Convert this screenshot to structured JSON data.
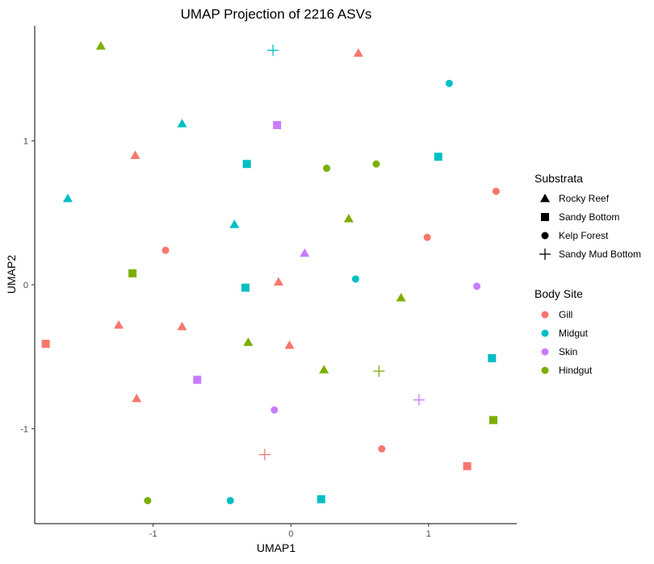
{
  "chart_data": {
    "type": "scatter",
    "title": "UMAP Projection of 2216 ASVs",
    "xlabel": "UMAP1",
    "ylabel": "UMAP2",
    "xlim": [
      -1.86,
      1.64
    ],
    "ylim": [
      -1.66,
      1.8
    ],
    "x_ticks": [
      -1,
      0,
      1
    ],
    "y_ticks": [
      -1,
      0,
      1
    ],
    "x_tick_labels": [
      "-1",
      "0",
      "1"
    ],
    "y_tick_labels": [
      "-1",
      "0",
      "1"
    ],
    "grid": false,
    "legend_placement": "right",
    "shape_legend": {
      "title": "Substrata",
      "entries": [
        {
          "label": "Rocky Reef",
          "shape": "triangle"
        },
        {
          "label": "Sandy Bottom",
          "shape": "square"
        },
        {
          "label": "Kelp Forest",
          "shape": "circle"
        },
        {
          "label": "Sandy Mud Bottom",
          "shape": "cross"
        }
      ]
    },
    "color_legend": {
      "title": "Body Site",
      "entries": [
        {
          "label": "Gill",
          "color": "#F8766D"
        },
        {
          "label": "Midgut",
          "color": "#00BFC4"
        },
        {
          "label": "Skin",
          "color": "#C77CFF"
        },
        {
          "label": "Hindgut",
          "color": "#7CAE00"
        }
      ]
    },
    "points": [
      {
        "x": -1.38,
        "y": 1.66,
        "substrata": "Rocky Reef",
        "body_site": "Hindgut"
      },
      {
        "x": -0.13,
        "y": 1.63,
        "substrata": "Sandy Mud Bottom",
        "body_site": "Midgut"
      },
      {
        "x": 0.49,
        "y": 1.61,
        "substrata": "Rocky Reef",
        "body_site": "Gill"
      },
      {
        "x": 1.15,
        "y": 1.4,
        "substrata": "Kelp Forest",
        "body_site": "Midgut"
      },
      {
        "x": -0.79,
        "y": 1.12,
        "substrata": "Rocky Reef",
        "body_site": "Midgut"
      },
      {
        "x": -0.1,
        "y": 1.11,
        "substrata": "Sandy Bottom",
        "body_site": "Skin"
      },
      {
        "x": -1.13,
        "y": 0.9,
        "substrata": "Rocky Reef",
        "body_site": "Gill"
      },
      {
        "x": 1.07,
        "y": 0.89,
        "substrata": "Sandy Bottom",
        "body_site": "Midgut"
      },
      {
        "x": -0.32,
        "y": 0.84,
        "substrata": "Sandy Bottom",
        "body_site": "Midgut"
      },
      {
        "x": 0.62,
        "y": 0.84,
        "substrata": "Kelp Forest",
        "body_site": "Hindgut"
      },
      {
        "x": 0.26,
        "y": 0.81,
        "substrata": "Kelp Forest",
        "body_site": "Hindgut"
      },
      {
        "x": 1.49,
        "y": 0.65,
        "substrata": "Kelp Forest",
        "body_site": "Gill"
      },
      {
        "x": -1.62,
        "y": 0.6,
        "substrata": "Rocky Reef",
        "body_site": "Midgut"
      },
      {
        "x": 0.42,
        "y": 0.46,
        "substrata": "Rocky Reef",
        "body_site": "Hindgut"
      },
      {
        "x": -0.41,
        "y": 0.42,
        "substrata": "Rocky Reef",
        "body_site": "Midgut"
      },
      {
        "x": 0.99,
        "y": 0.33,
        "substrata": "Kelp Forest",
        "body_site": "Gill"
      },
      {
        "x": -0.91,
        "y": 0.24,
        "substrata": "Kelp Forest",
        "body_site": "Gill"
      },
      {
        "x": 0.1,
        "y": 0.22,
        "substrata": "Rocky Reef",
        "body_site": "Skin"
      },
      {
        "x": -1.15,
        "y": 0.08,
        "substrata": "Sandy Bottom",
        "body_site": "Hindgut"
      },
      {
        "x": 0.47,
        "y": 0.04,
        "substrata": "Kelp Forest",
        "body_site": "Midgut"
      },
      {
        "x": -0.09,
        "y": 0.02,
        "substrata": "Rocky Reef",
        "body_site": "Gill"
      },
      {
        "x": -0.33,
        "y": -0.02,
        "substrata": "Sandy Bottom",
        "body_site": "Midgut"
      },
      {
        "x": 1.35,
        "y": -0.01,
        "substrata": "Kelp Forest",
        "body_site": "Skin"
      },
      {
        "x": 0.8,
        "y": -0.09,
        "substrata": "Rocky Reef",
        "body_site": "Hindgut"
      },
      {
        "x": -1.25,
        "y": -0.28,
        "substrata": "Rocky Reef",
        "body_site": "Gill"
      },
      {
        "x": -0.79,
        "y": -0.29,
        "substrata": "Rocky Reef",
        "body_site": "Gill"
      },
      {
        "x": -1.78,
        "y": -0.41,
        "substrata": "Sandy Bottom",
        "body_site": "Gill"
      },
      {
        "x": -0.31,
        "y": -0.4,
        "substrata": "Rocky Reef",
        "body_site": "Hindgut"
      },
      {
        "x": -0.01,
        "y": -0.42,
        "substrata": "Rocky Reef",
        "body_site": "Gill"
      },
      {
        "x": 1.46,
        "y": -0.51,
        "substrata": "Sandy Bottom",
        "body_site": "Midgut"
      },
      {
        "x": 0.24,
        "y": -0.59,
        "substrata": "Rocky Reef",
        "body_site": "Hindgut"
      },
      {
        "x": 0.64,
        "y": -0.6,
        "substrata": "Sandy Mud Bottom",
        "body_site": "Hindgut"
      },
      {
        "x": -0.68,
        "y": -0.66,
        "substrata": "Sandy Bottom",
        "body_site": "Skin"
      },
      {
        "x": -1.12,
        "y": -0.79,
        "substrata": "Rocky Reef",
        "body_site": "Gill"
      },
      {
        "x": 0.93,
        "y": -0.8,
        "substrata": "Sandy Mud Bottom",
        "body_site": "Skin"
      },
      {
        "x": -0.12,
        "y": -0.87,
        "substrata": "Kelp Forest",
        "body_site": "Skin"
      },
      {
        "x": 1.47,
        "y": -0.94,
        "substrata": "Sandy Bottom",
        "body_site": "Hindgut"
      },
      {
        "x": 0.66,
        "y": -1.14,
        "substrata": "Kelp Forest",
        "body_site": "Gill"
      },
      {
        "x": -0.19,
        "y": -1.18,
        "substrata": "Sandy Mud Bottom",
        "body_site": "Gill"
      },
      {
        "x": 1.28,
        "y": -1.26,
        "substrata": "Sandy Bottom",
        "body_site": "Gill"
      },
      {
        "x": -1.04,
        "y": -1.5,
        "substrata": "Kelp Forest",
        "body_site": "Hindgut"
      },
      {
        "x": -0.44,
        "y": -1.5,
        "substrata": "Kelp Forest",
        "body_site": "Midgut"
      },
      {
        "x": 0.22,
        "y": -1.49,
        "substrata": "Sandy Bottom",
        "body_site": "Midgut"
      }
    ]
  }
}
